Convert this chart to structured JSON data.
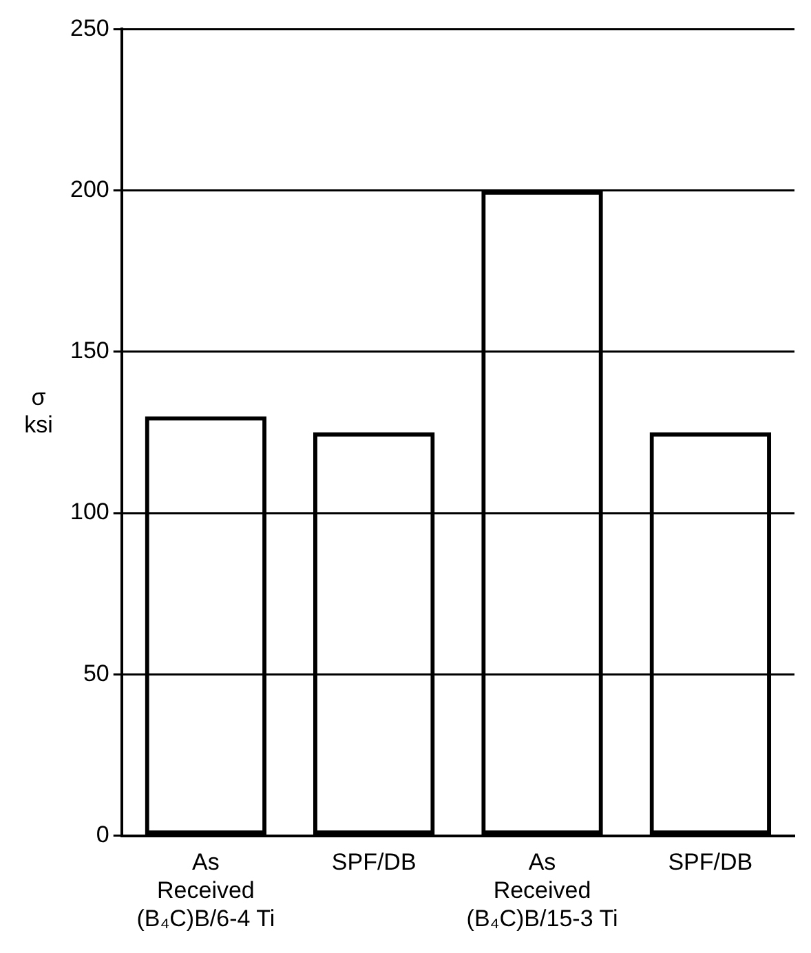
{
  "chart_data": {
    "type": "bar",
    "ylabel": "σ\nksi",
    "categories": [
      "As\nReceived\n(B₄C)B/6-4 Ti",
      "SPF/DB",
      "As\nReceived\n(B₄C)B/15-3 Ti",
      "SPF/DB"
    ],
    "values": [
      130,
      125,
      200,
      125
    ],
    "color": "#000000",
    "ylim": [
      0,
      250
    ],
    "yticks": [
      0,
      50,
      100,
      150,
      200,
      250
    ],
    "grid": "y"
  }
}
